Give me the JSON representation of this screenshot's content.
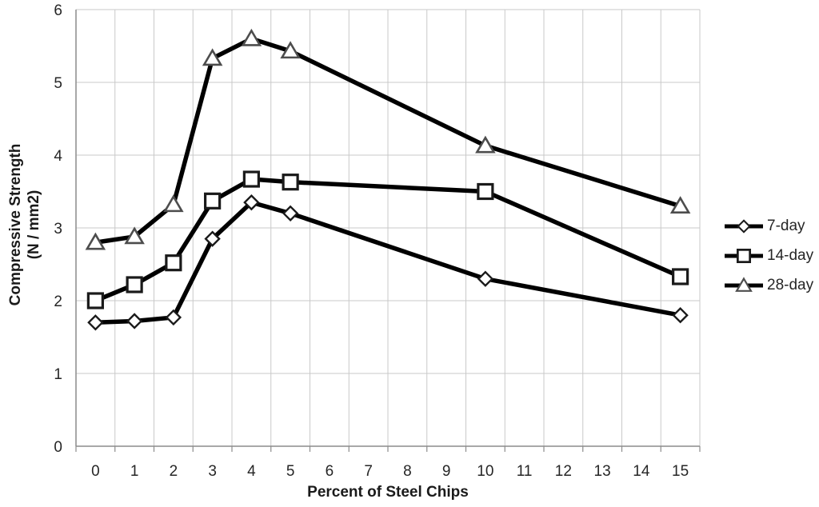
{
  "chart_data": {
    "type": "line",
    "title": "",
    "xlabel": "Percent of Steel Chips",
    "ylabel_line1": "Compressive Strength",
    "ylabel_line2": "(N / mm2)",
    "x_axis": {
      "categories": [
        "0",
        "1",
        "2",
        "3",
        "4",
        "5",
        "6",
        "7",
        "8",
        "9",
        "10",
        "11",
        "12",
        "13",
        "14",
        "15"
      ]
    },
    "y_ticks": [
      0,
      1,
      2,
      3,
      4,
      5,
      6
    ],
    "ylim": [
      0,
      6
    ],
    "grid": true,
    "legend_position": "right",
    "x": [
      0,
      1,
      2,
      3,
      4,
      5,
      10,
      15
    ],
    "series": [
      {
        "name": "7-day",
        "marker": "diamond",
        "values": [
          1.7,
          1.72,
          1.77,
          2.85,
          3.35,
          3.2,
          2.3,
          1.8
        ]
      },
      {
        "name": "14-day",
        "marker": "square",
        "values": [
          2.0,
          2.22,
          2.52,
          3.37,
          3.67,
          3.63,
          3.5,
          2.33
        ]
      },
      {
        "name": "28-day",
        "marker": "triangle",
        "values": [
          2.8,
          2.88,
          3.32,
          5.33,
          5.6,
          5.43,
          4.13,
          3.3
        ]
      }
    ],
    "colors": {
      "line": "#000000",
      "marker_fill": "#ffffff",
      "marker_stroke": "#1a1a1a",
      "triangle_stroke": "#4d4d4d",
      "grid": "#c9c9c9",
      "axis": "#8c8c8c",
      "text": "#262626"
    }
  }
}
